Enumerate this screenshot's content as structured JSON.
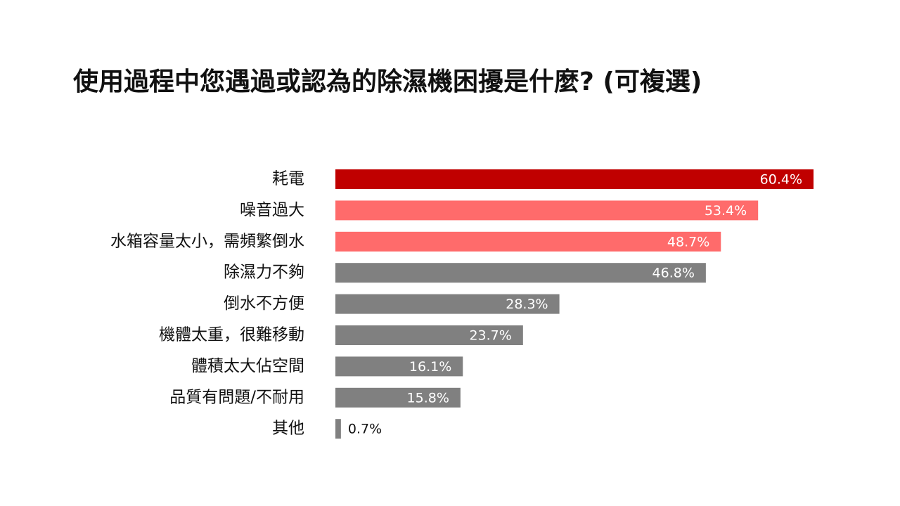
{
  "chart_data": {
    "type": "barh",
    "title": "使用過程中您遇過或認為的除濕機困擾是什麼? (可複選)",
    "categories": [
      "耗電",
      "噪音過大",
      "水箱容量太小，需頻繁倒水",
      "除濕力不夠",
      "倒水不方便",
      "機體太重，很難移動",
      "體積太大佔空間",
      "品質有問題/不耐用",
      "其他"
    ],
    "values": [
      60.4,
      53.4,
      48.7,
      46.8,
      28.3,
      23.7,
      16.1,
      15.8,
      0.7
    ],
    "value_labels": [
      "60.4%",
      "53.4%",
      "48.7%",
      "46.8%",
      "28.3%",
      "23.7%",
      "16.1%",
      "15.8%",
      "0.7%"
    ],
    "colors": [
      "#c00000",
      "#ff6b6b",
      "#ff6b6b",
      "#808080",
      "#808080",
      "#808080",
      "#808080",
      "#808080",
      "#808080"
    ]
  }
}
